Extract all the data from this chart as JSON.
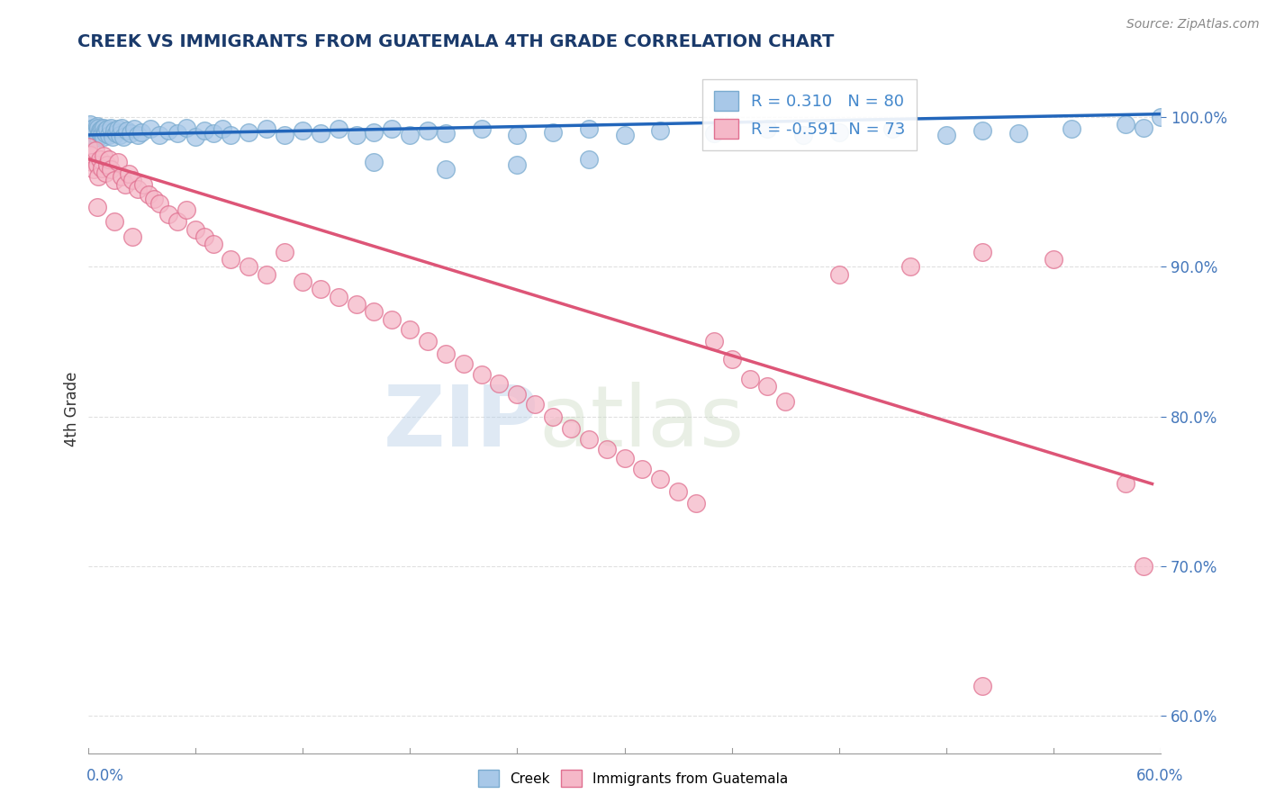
{
  "title": "CREEK VS IMMIGRANTS FROM GUATEMALA 4TH GRADE CORRELATION CHART",
  "source": "Source: ZipAtlas.com",
  "xlabel_bottom_left": "0.0%",
  "xlabel_bottom_right": "60.0%",
  "ylabel": "4th Grade",
  "right_yticks": [
    "100.0%",
    "90.0%",
    "80.0%",
    "70.0%",
    "60.0%"
  ],
  "right_ytick_vals": [
    1.0,
    0.9,
    0.8,
    0.7,
    0.6
  ],
  "xmin": 0.0,
  "xmax": 0.6,
  "ymin": 0.575,
  "ymax": 1.035,
  "creek_color": "#a8c8e8",
  "creek_edge_color": "#7aabcf",
  "guatemala_color": "#f5b8c8",
  "guatemala_edge_color": "#e07090",
  "creek_R": 0.31,
  "creek_N": 80,
  "guatemala_R": -0.591,
  "guatemala_N": 73,
  "legend_R_color": "#4488cc",
  "watermark": "ZIPatlas",
  "creek_scatter_x": [
    0.0,
    0.001,
    0.001,
    0.002,
    0.002,
    0.003,
    0.003,
    0.004,
    0.004,
    0.005,
    0.005,
    0.006,
    0.006,
    0.007,
    0.007,
    0.008,
    0.008,
    0.009,
    0.009,
    0.01,
    0.01,
    0.011,
    0.012,
    0.013,
    0.014,
    0.015,
    0.016,
    0.017,
    0.018,
    0.019,
    0.02,
    0.022,
    0.024,
    0.026,
    0.028,
    0.03,
    0.035,
    0.04,
    0.045,
    0.05,
    0.055,
    0.06,
    0.065,
    0.07,
    0.075,
    0.08,
    0.09,
    0.1,
    0.11,
    0.12,
    0.13,
    0.14,
    0.15,
    0.16,
    0.17,
    0.18,
    0.19,
    0.2,
    0.22,
    0.24,
    0.26,
    0.28,
    0.3,
    0.32,
    0.35,
    0.38,
    0.4,
    0.42,
    0.45,
    0.48,
    0.5,
    0.52,
    0.55,
    0.58,
    0.59,
    0.6,
    0.16,
    0.2,
    0.24,
    0.28
  ],
  "creek_scatter_y": [
    0.99,
    0.995,
    0.985,
    0.992,
    0.988,
    0.993,
    0.987,
    0.991,
    0.989,
    0.994,
    0.986,
    0.993,
    0.987,
    0.991,
    0.989,
    0.992,
    0.988,
    0.993,
    0.987,
    0.991,
    0.989,
    0.992,
    0.988,
    0.993,
    0.987,
    0.991,
    0.989,
    0.992,
    0.988,
    0.993,
    0.987,
    0.991,
    0.989,
    0.992,
    0.988,
    0.99,
    0.992,
    0.988,
    0.991,
    0.989,
    0.993,
    0.987,
    0.991,
    0.989,
    0.992,
    0.988,
    0.99,
    0.992,
    0.988,
    0.991,
    0.989,
    0.992,
    0.988,
    0.99,
    0.992,
    0.988,
    0.991,
    0.989,
    0.992,
    0.988,
    0.99,
    0.992,
    0.988,
    0.991,
    0.989,
    0.992,
    0.988,
    0.99,
    0.992,
    0.988,
    0.991,
    0.989,
    0.992,
    0.995,
    0.993,
    1.0,
    0.97,
    0.965,
    0.968,
    0.972
  ],
  "guatemala_scatter_x": [
    0.0,
    0.001,
    0.002,
    0.003,
    0.004,
    0.005,
    0.006,
    0.007,
    0.008,
    0.009,
    0.01,
    0.011,
    0.012,
    0.013,
    0.015,
    0.017,
    0.019,
    0.021,
    0.023,
    0.025,
    0.028,
    0.031,
    0.034,
    0.037,
    0.04,
    0.045,
    0.05,
    0.055,
    0.06,
    0.065,
    0.07,
    0.08,
    0.09,
    0.1,
    0.11,
    0.12,
    0.13,
    0.14,
    0.15,
    0.16,
    0.17,
    0.18,
    0.19,
    0.2,
    0.21,
    0.22,
    0.23,
    0.24,
    0.25,
    0.26,
    0.27,
    0.28,
    0.29,
    0.3,
    0.31,
    0.32,
    0.33,
    0.34,
    0.35,
    0.36,
    0.37,
    0.38,
    0.39,
    0.42,
    0.46,
    0.5,
    0.54,
    0.58,
    0.005,
    0.015,
    0.025,
    0.59,
    0.5
  ],
  "guatemala_scatter_y": [
    0.98,
    0.975,
    0.97,
    0.965,
    0.978,
    0.968,
    0.96,
    0.972,
    0.966,
    0.974,
    0.963,
    0.968,
    0.972,
    0.965,
    0.958,
    0.97,
    0.96,
    0.955,
    0.962,
    0.958,
    0.952,
    0.955,
    0.948,
    0.945,
    0.942,
    0.935,
    0.93,
    0.938,
    0.925,
    0.92,
    0.915,
    0.905,
    0.9,
    0.895,
    0.91,
    0.89,
    0.885,
    0.88,
    0.875,
    0.87,
    0.865,
    0.858,
    0.85,
    0.842,
    0.835,
    0.828,
    0.822,
    0.815,
    0.808,
    0.8,
    0.792,
    0.785,
    0.778,
    0.772,
    0.765,
    0.758,
    0.75,
    0.742,
    0.85,
    0.838,
    0.825,
    0.82,
    0.81,
    0.895,
    0.9,
    0.91,
    0.905,
    0.755,
    0.94,
    0.93,
    0.92,
    0.7,
    0.62
  ],
  "creek_line_x": [
    0.0,
    0.6
  ],
  "creek_line_y": [
    0.988,
    1.002
  ],
  "guatemala_line_x": [
    0.0,
    0.595
  ],
  "guatemala_line_y": [
    0.972,
    0.755
  ],
  "bg_color": "#ffffff",
  "grid_color": "#e0e0e0",
  "title_color": "#1a3a6b",
  "axis_label_color": "#1a3a6b",
  "tick_color": "#4477bb"
}
